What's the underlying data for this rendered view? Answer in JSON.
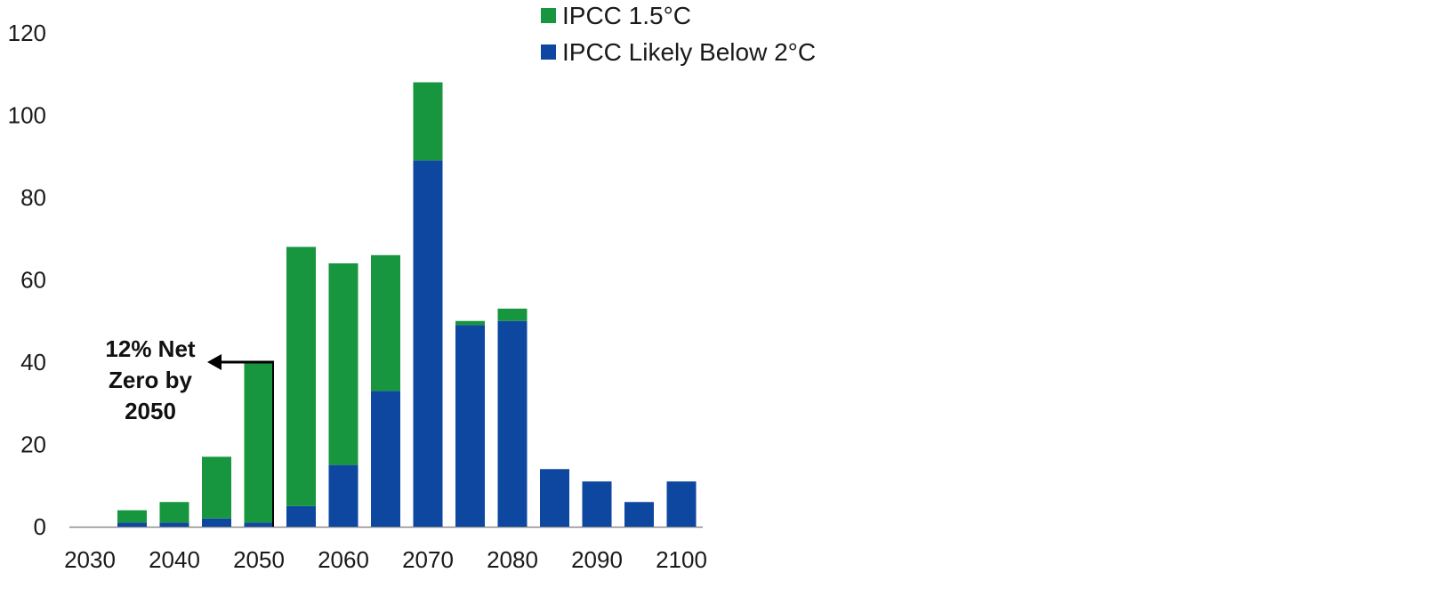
{
  "chart_data": {
    "type": "bar",
    "stacked": true,
    "x": [
      2030,
      2035,
      2040,
      2045,
      2050,
      2055,
      2060,
      2065,
      2070,
      2075,
      2080,
      2085,
      2090,
      2095,
      2100
    ],
    "x_tick_labels": [
      "2030",
      "2040",
      "2050",
      "2060",
      "2070",
      "2080",
      "2090",
      "2100"
    ],
    "y_tick_labels": [
      "0",
      "20",
      "40",
      "60",
      "80",
      "100",
      "120"
    ],
    "ylim": [
      0,
      120
    ],
    "series": [
      {
        "name": "IPCC Likely Below 2°C",
        "color": "#0e47a0",
        "values": [
          0,
          1,
          1,
          2,
          1,
          5,
          15,
          33,
          89,
          49,
          50,
          14,
          11,
          6,
          11
        ]
      },
      {
        "name": "IPCC 1.5°C",
        "color": "#17963f",
        "values": [
          0,
          3,
          5,
          15,
          39,
          63,
          49,
          33,
          19,
          1,
          3,
          0,
          0,
          0,
          0
        ]
      }
    ],
    "legend": {
      "position": "top-center",
      "order": [
        "IPCC 1.5°C",
        "IPCC Likely Below 2°C"
      ]
    },
    "annotation": {
      "lines": [
        "12% Net",
        "Zero by",
        "2050"
      ],
      "x": 2050,
      "y": 40
    },
    "grid": false,
    "title": "",
    "xlabel": "",
    "ylabel": ""
  }
}
